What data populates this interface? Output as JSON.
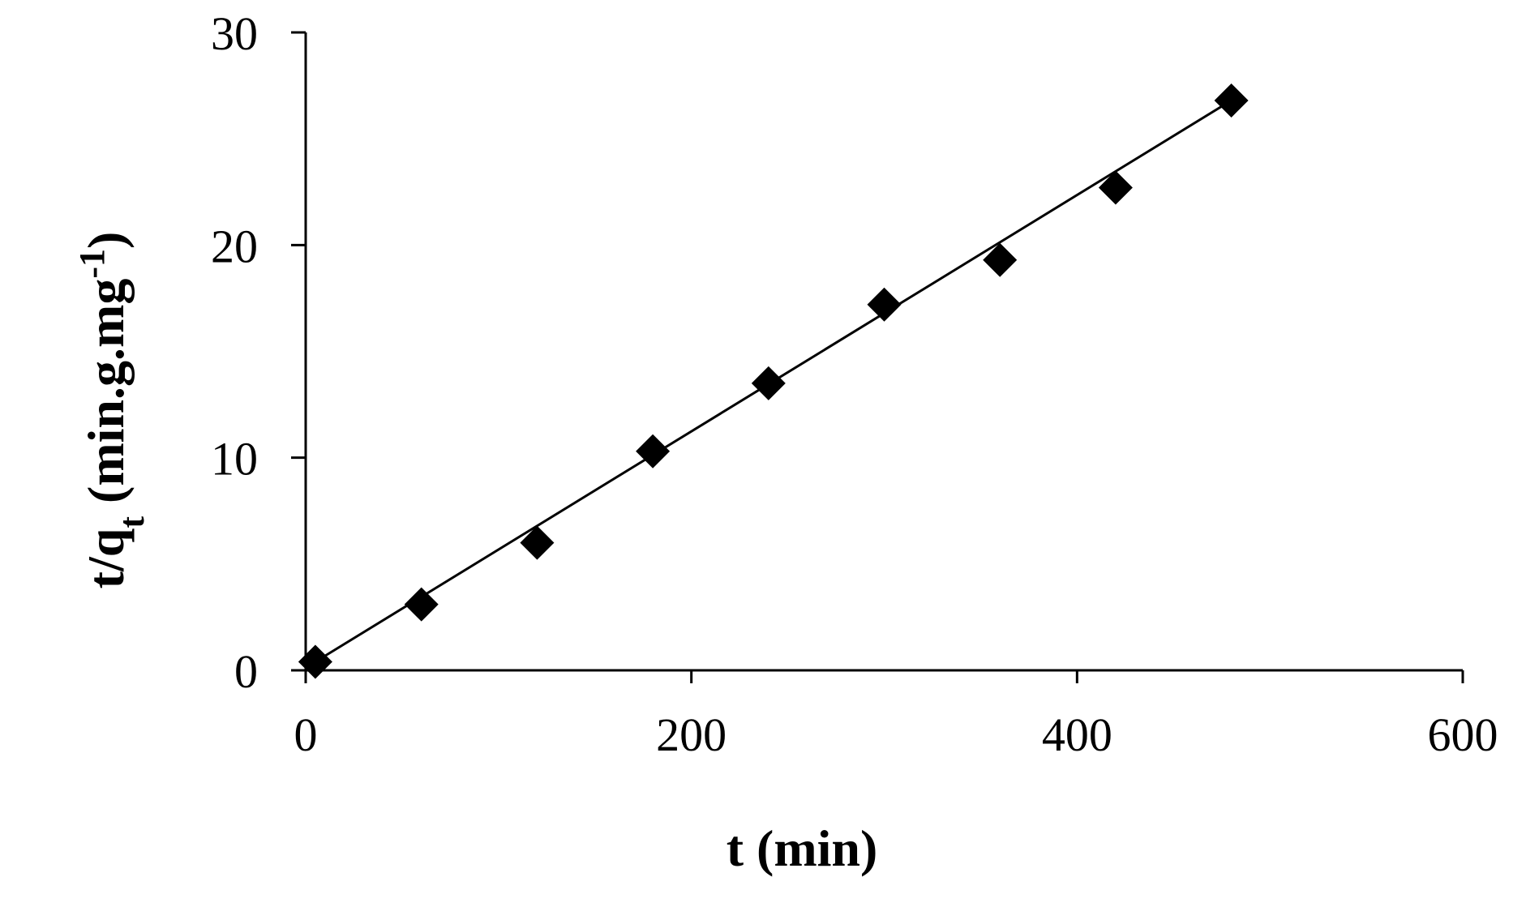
{
  "chart_data": {
    "type": "scatter",
    "xlabel": "t (min)",
    "ylabel": {
      "main": "t/q",
      "subscript": "t",
      "unit_prefix": " (min.g.mg",
      "superscript": "-1",
      "unit_suffix": ")"
    },
    "xlim": [
      0,
      600
    ],
    "ylim": [
      0,
      30
    ],
    "xticks": [
      0,
      200,
      400,
      600
    ],
    "yticks": [
      0,
      10,
      20,
      30
    ],
    "xtick_labels": [
      "0",
      "200",
      "400",
      "600"
    ],
    "ytick_labels": [
      "0",
      "10",
      "20",
      "30"
    ],
    "grid": false,
    "legend": "none",
    "series": [
      {
        "marker": "diamond",
        "color": "#000000",
        "x": [
          5,
          60,
          120,
          180,
          240,
          300,
          360,
          420,
          480
        ],
        "y": [
          0.4,
          3.1,
          6.0,
          10.3,
          13.5,
          17.2,
          19.3,
          22.7,
          26.8
        ]
      }
    ],
    "fit_line": {
      "color": "#000000",
      "x": [
        5,
        480
      ],
      "y": [
        0.4,
        26.8
      ]
    }
  }
}
